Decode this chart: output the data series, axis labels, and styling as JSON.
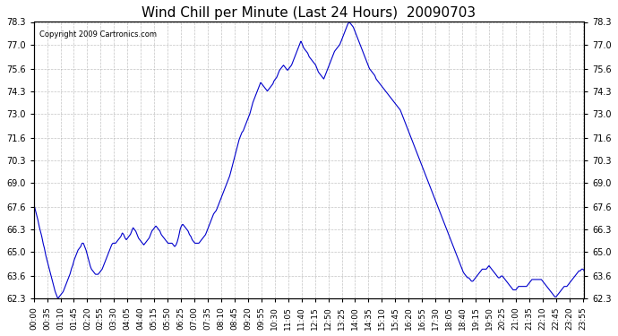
{
  "title": "Wind Chill per Minute (Last 24 Hours)  20090703",
  "copyright_text": "Copyright 2009 Cartronics.com",
  "line_color": "#0000cc",
  "bg_color": "#ffffff",
  "grid_color": "#aaaaaa",
  "ylim": [
    62.3,
    78.3
  ],
  "yticks": [
    62.3,
    63.6,
    65.0,
    66.3,
    67.6,
    69.0,
    70.3,
    71.6,
    73.0,
    74.3,
    75.6,
    77.0,
    78.3
  ],
  "xtick_labels": [
    "00:00",
    "00:35",
    "01:10",
    "01:45",
    "02:20",
    "02:55",
    "03:30",
    "04:05",
    "04:40",
    "05:15",
    "05:50",
    "06:25",
    "07:00",
    "07:35",
    "08:10",
    "08:45",
    "09:20",
    "09:55",
    "10:30",
    "11:05",
    "11:40",
    "12:15",
    "12:50",
    "13:25",
    "14:00",
    "14:35",
    "15:10",
    "15:45",
    "16:20",
    "16:55",
    "17:30",
    "18:05",
    "18:40",
    "19:15",
    "19:50",
    "20:25",
    "21:00",
    "21:35",
    "22:10",
    "22:45",
    "23:20",
    "23:55"
  ],
  "raw_data": [
    67.8,
    67.5,
    67.2,
    66.9,
    66.5,
    66.2,
    65.9,
    65.5,
    65.2,
    64.8,
    64.5,
    64.2,
    63.9,
    63.6,
    63.3,
    63.0,
    62.7,
    62.5,
    62.3,
    62.4,
    62.5,
    62.6,
    62.7,
    62.9,
    63.1,
    63.3,
    63.5,
    63.7,
    64.0,
    64.2,
    64.5,
    64.7,
    64.9,
    65.1,
    65.2,
    65.3,
    65.5,
    65.5,
    65.3,
    65.1,
    64.8,
    64.5,
    64.2,
    64.0,
    63.9,
    63.8,
    63.7,
    63.7,
    63.7,
    63.8,
    63.9,
    64.0,
    64.2,
    64.4,
    64.6,
    64.8,
    65.0,
    65.2,
    65.4,
    65.5,
    65.5,
    65.5,
    65.6,
    65.7,
    65.8,
    65.9,
    66.1,
    66.0,
    65.8,
    65.7,
    65.8,
    65.9,
    66.0,
    66.2,
    66.4,
    66.3,
    66.2,
    66.0,
    65.8,
    65.7,
    65.6,
    65.5,
    65.4,
    65.5,
    65.6,
    65.7,
    65.8,
    66.0,
    66.2,
    66.3,
    66.4,
    66.5,
    66.4,
    66.3,
    66.2,
    66.0,
    65.9,
    65.8,
    65.7,
    65.6,
    65.5,
    65.5,
    65.5,
    65.5,
    65.4,
    65.3,
    65.4,
    65.6,
    65.9,
    66.3,
    66.5,
    66.6,
    66.5,
    66.4,
    66.3,
    66.2,
    66.0,
    65.9,
    65.7,
    65.6,
    65.5,
    65.5,
    65.5,
    65.5,
    65.6,
    65.7,
    65.8,
    65.9,
    66.0,
    66.2,
    66.4,
    66.6,
    66.8,
    67.0,
    67.2,
    67.3,
    67.4,
    67.6,
    67.8,
    68.0,
    68.2,
    68.4,
    68.6,
    68.8,
    69.0,
    69.2,
    69.4,
    69.7,
    70.0,
    70.3,
    70.6,
    70.9,
    71.2,
    71.5,
    71.7,
    71.9,
    72.0,
    72.2,
    72.4,
    72.6,
    72.8,
    73.0,
    73.3,
    73.6,
    73.8,
    74.0,
    74.2,
    74.4,
    74.6,
    74.8,
    74.7,
    74.6,
    74.5,
    74.4,
    74.3,
    74.4,
    74.5,
    74.6,
    74.7,
    74.9,
    75.0,
    75.1,
    75.3,
    75.5,
    75.6,
    75.7,
    75.8,
    75.7,
    75.6,
    75.5,
    75.6,
    75.7,
    75.8,
    76.0,
    76.2,
    76.4,
    76.6,
    76.8,
    77.0,
    77.2,
    77.0,
    76.8,
    76.7,
    76.6,
    76.5,
    76.3,
    76.2,
    76.1,
    76.0,
    75.9,
    75.8,
    75.6,
    75.4,
    75.3,
    75.2,
    75.1,
    75.0,
    75.2,
    75.4,
    75.6,
    75.8,
    76.0,
    76.2,
    76.4,
    76.6,
    76.7,
    76.8,
    76.9,
    77.0,
    77.2,
    77.4,
    77.6,
    77.8,
    78.0,
    78.2,
    78.3,
    78.2,
    78.1,
    78.0,
    77.8,
    77.6,
    77.4,
    77.2,
    77.0,
    76.8,
    76.6,
    76.4,
    76.2,
    76.0,
    75.8,
    75.6,
    75.5,
    75.4,
    75.3,
    75.2,
    75.0,
    74.9,
    74.8,
    74.7,
    74.6,
    74.5,
    74.4,
    74.3,
    74.2,
    74.1,
    74.0,
    73.9,
    73.8,
    73.7,
    73.6,
    73.5,
    73.4,
    73.3,
    73.2,
    73.0,
    72.8,
    72.6,
    72.4,
    72.2,
    72.0,
    71.8,
    71.6,
    71.4,
    71.2,
    71.0,
    70.8,
    70.6,
    70.4,
    70.2,
    70.0,
    69.8,
    69.6,
    69.4,
    69.2,
    69.0,
    68.8,
    68.6,
    68.4,
    68.2,
    68.0,
    67.8,
    67.6,
    67.4,
    67.2,
    67.0,
    66.8,
    66.6,
    66.4,
    66.2,
    66.0,
    65.8,
    65.6,
    65.4,
    65.2,
    65.0,
    64.8,
    64.6,
    64.4,
    64.2,
    64.0,
    63.8,
    63.7,
    63.6,
    63.5,
    63.5,
    63.4,
    63.3,
    63.3,
    63.4,
    63.5,
    63.6,
    63.7,
    63.8,
    63.9,
    64.0,
    64.0,
    64.0,
    64.0,
    64.1,
    64.2,
    64.1,
    64.0,
    63.9,
    63.8,
    63.7,
    63.6,
    63.5,
    63.5,
    63.6,
    63.6,
    63.5,
    63.4,
    63.3,
    63.2,
    63.1,
    63.0,
    62.9,
    62.8,
    62.8,
    62.8,
    62.9,
    63.0,
    63.0,
    63.0,
    63.0,
    63.0,
    63.0,
    63.0,
    63.1,
    63.2,
    63.3,
    63.4,
    63.4,
    63.4,
    63.4,
    63.4,
    63.4,
    63.4,
    63.4,
    63.3,
    63.2,
    63.1,
    63.0,
    62.9,
    62.8,
    62.7,
    62.6,
    62.5,
    62.4,
    62.4,
    62.5,
    62.6,
    62.7,
    62.8,
    62.9,
    63.0,
    63.0,
    63.0,
    63.1,
    63.2,
    63.3,
    63.4,
    63.5,
    63.6,
    63.7,
    63.8,
    63.9,
    63.9,
    64.0,
    64.0,
    63.9
  ]
}
